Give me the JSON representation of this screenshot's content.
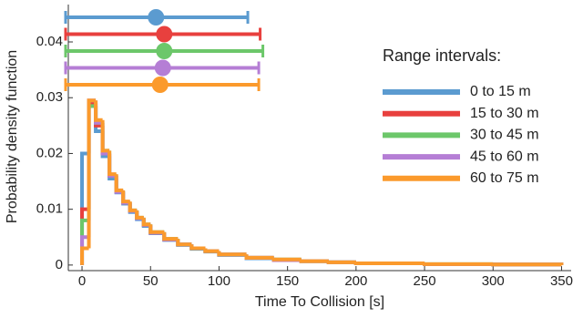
{
  "chart_data": {
    "type": "histogram",
    "xlabel": "Time To Collision [s]",
    "ylabel": "Probability density function",
    "legend_title": "Range intervals:",
    "legend_position": "right",
    "xlim": [
      -10,
      357
    ],
    "xticks": [
      0,
      50,
      100,
      150,
      200,
      250,
      300,
      350
    ],
    "ylim": [
      -0.001,
      0.0467
    ],
    "yticks": [
      0,
      0.01,
      0.02,
      0.03,
      0.04
    ],
    "bins": [
      0,
      5,
      10,
      15,
      20,
      25,
      30,
      35,
      40,
      45,
      50,
      60,
      70,
      80,
      90,
      100,
      120,
      140,
      160,
      180,
      200,
      250,
      300,
      350
    ],
    "series": [
      {
        "name": "0 to 15 m",
        "color": "#5b9bd0",
        "mean": 54,
        "interval": [
          -12,
          121
        ],
        "values": [
          0.02,
          0.0285,
          0.024,
          0.0195,
          0.0155,
          0.013,
          0.011,
          0.0095,
          0.0082,
          0.007,
          0.0057,
          0.0045,
          0.0036,
          0.0029,
          0.0024,
          0.0018,
          0.0012,
          0.0009,
          0.0007,
          0.0005,
          0.0003,
          0.00015,
          0.0001
        ]
      },
      {
        "name": "15 to 30 m",
        "color": "#e8403e",
        "mean": 60,
        "interval": [
          -12,
          130
        ],
        "values": [
          0.01,
          0.029,
          0.025,
          0.02,
          0.016,
          0.0132,
          0.0112,
          0.0097,
          0.0084,
          0.0072,
          0.0058,
          0.0046,
          0.0037,
          0.003,
          0.0025,
          0.0019,
          0.0013,
          0.0009,
          0.0007,
          0.0005,
          0.0003,
          0.00015,
          0.0001
        ]
      },
      {
        "name": "30 to 45 m",
        "color": "#6cc76a",
        "mean": 60,
        "interval": [
          -12,
          132
        ],
        "values": [
          0.008,
          0.0285,
          0.0255,
          0.0205,
          0.0162,
          0.0133,
          0.0113,
          0.0098,
          0.0085,
          0.0073,
          0.0059,
          0.0047,
          0.0037,
          0.003,
          0.0025,
          0.0019,
          0.0013,
          0.001,
          0.0007,
          0.0005,
          0.0003,
          0.00016,
          0.0001
        ]
      },
      {
        "name": "45 to 60 m",
        "color": "#b57ed5",
        "mean": 59,
        "interval": [
          -12,
          129
        ],
        "values": [
          0.005,
          0.0295,
          0.0255,
          0.02,
          0.016,
          0.0131,
          0.0112,
          0.0097,
          0.0084,
          0.0072,
          0.0058,
          0.0046,
          0.0037,
          0.003,
          0.0025,
          0.0019,
          0.0013,
          0.0009,
          0.0007,
          0.0005,
          0.0003,
          0.00015,
          0.0001
        ]
      },
      {
        "name": "60 to 75 m",
        "color": "#fb9a2c",
        "mean": 57,
        "interval": [
          -12,
          129
        ],
        "values": [
          0.003,
          0.0295,
          0.026,
          0.0205,
          0.0163,
          0.0134,
          0.0114,
          0.0098,
          0.0085,
          0.0073,
          0.0059,
          0.0047,
          0.0037,
          0.003,
          0.0025,
          0.0019,
          0.0013,
          0.001,
          0.0007,
          0.0005,
          0.0003,
          0.00016,
          0.0001
        ]
      }
    ]
  }
}
